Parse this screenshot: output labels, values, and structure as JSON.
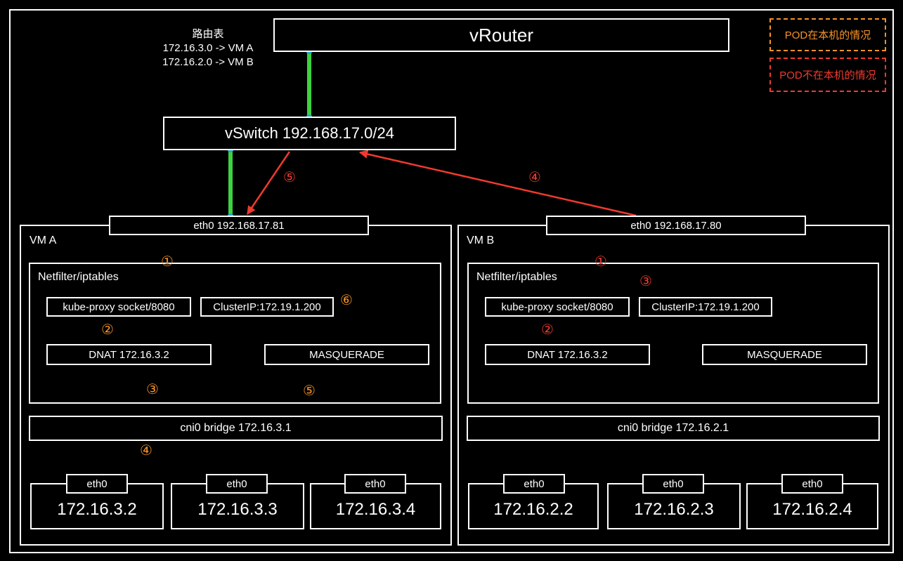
{
  "router": {
    "title": "vRouter"
  },
  "route_table": {
    "title": "路由表",
    "entries": [
      "172.16.3.0 -> VM A",
      "172.16.2.0 -> VM B"
    ]
  },
  "legend": {
    "local": {
      "text": "POD在本机的情况",
      "color": "#f5922a"
    },
    "remote": {
      "text": "POD不在本机的情况",
      "color": "#f03a2e"
    }
  },
  "vswitch": {
    "label": "vSwitch 192.168.17.0/24"
  },
  "vm_a": {
    "title": "VM A",
    "eth0": "eth0 192.168.17.81",
    "netfilter": "Netfilter/iptables",
    "kube_proxy": "kube-proxy socket/8080",
    "cluster_ip": "ClusterIP:172.19.1.200",
    "dnat": "DNAT 172.16.3.2",
    "masquerade": "MASQUERADE",
    "bridge": "cni0 bridge 172.16.3.1",
    "pods": [
      {
        "iface": "eth0",
        "ip": "172.16.3.2"
      },
      {
        "iface": "eth0",
        "ip": "172.16.3.3"
      },
      {
        "iface": "eth0",
        "ip": "172.16.3.4"
      }
    ]
  },
  "vm_b": {
    "title": "VM B",
    "eth0": "eth0 192.168.17.80",
    "netfilter": "Netfilter/iptables",
    "kube_proxy": "kube-proxy socket/8080",
    "cluster_ip": "ClusterIP:172.19.1.200",
    "dnat": "DNAT 172.16.3.2",
    "masquerade": "MASQUERADE",
    "bridge": "cni0 bridge 172.16.2.1",
    "pods": [
      {
        "iface": "eth0",
        "ip": "172.16.2.2"
      },
      {
        "iface": "eth0",
        "ip": "172.16.2.3"
      },
      {
        "iface": "eth0",
        "ip": "172.16.2.4"
      }
    ]
  },
  "step_labels": {
    "a1": "①",
    "a2": "②",
    "a3": "③",
    "a4": "④",
    "a5": "⑤",
    "a6": "⑥",
    "r4": "④",
    "r5": "⑤",
    "b1": "①",
    "b2": "②",
    "b3": "③"
  },
  "colors": {
    "link": "#3fd13f",
    "link_cap": "#1aa8c8",
    "orange": "#f5922a",
    "red": "#f03a2e",
    "line": "#ffffff"
  }
}
